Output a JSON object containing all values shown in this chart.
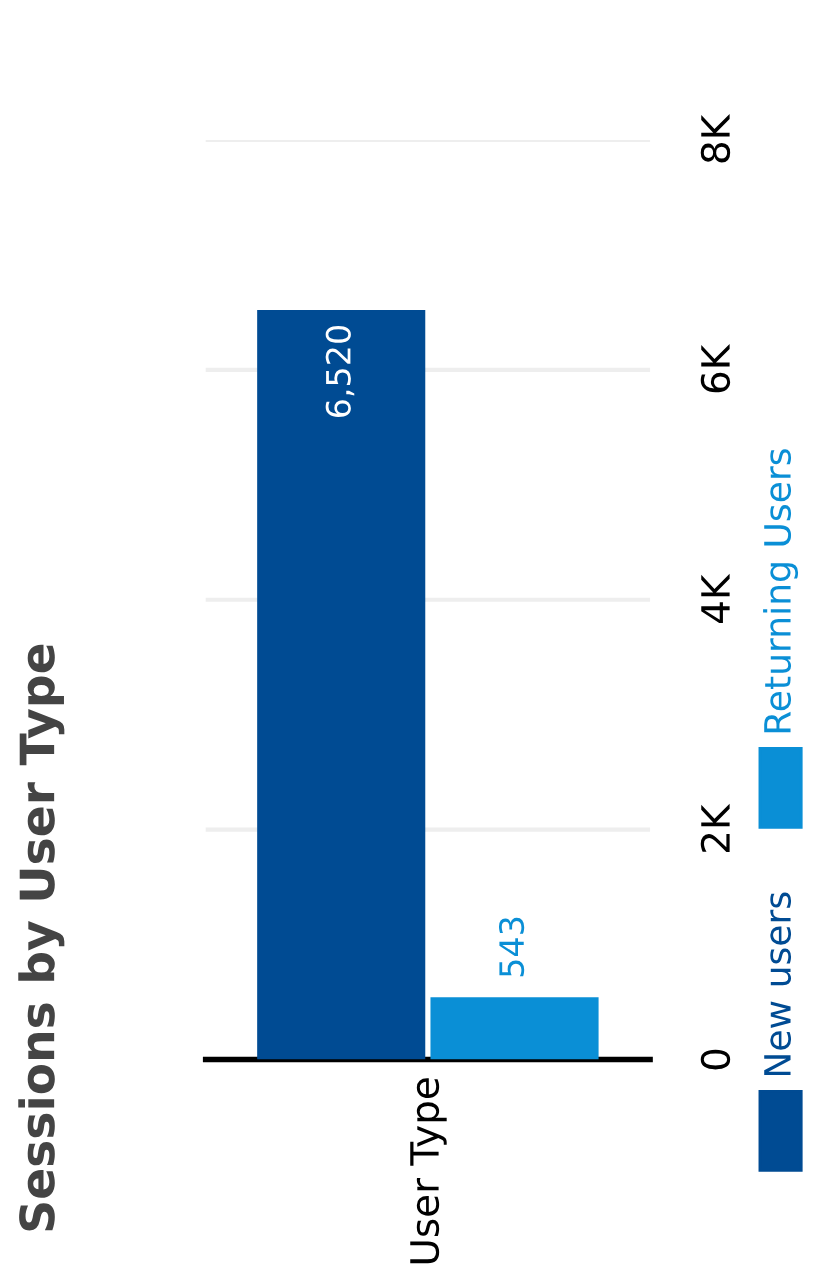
{
  "chart_data": {
    "type": "bar",
    "title": "Sessions by User Type",
    "categories": [
      "User Type"
    ],
    "series": [
      {
        "name": "New users",
        "color": "#004b93",
        "values": [
          6520
        ],
        "value_labels": [
          "6,520"
        ]
      },
      {
        "name": "Returning Users",
        "color": "#0a8fd6",
        "values": [
          543
        ],
        "value_labels": [
          "543"
        ]
      }
    ],
    "ylim": [
      0,
      8000
    ],
    "yticks": [
      0,
      {
        "value": 2000,
        "label": "2K"
      },
      {
        "value": 4000,
        "label": "4K"
      },
      {
        "value": 6000,
        "label": "6K"
      },
      {
        "value": 8000,
        "label": "8K"
      }
    ],
    "grid": "y",
    "legend": "right"
  }
}
